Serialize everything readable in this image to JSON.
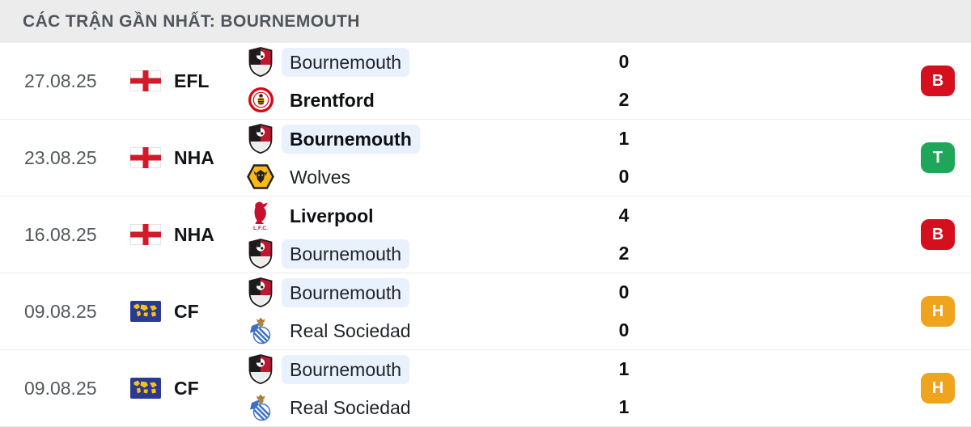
{
  "header": {
    "title": "CÁC TRẬN GẦN NHẤT: BOURNEMOUTH"
  },
  "result_colors": {
    "B": "#D50F1E",
    "T": "#1FA65A",
    "H": "#F0A41E"
  },
  "rows": [
    {
      "date": "27.08.25",
      "competition": {
        "label": "EFL",
        "icon": "england-flag"
      },
      "teams": [
        {
          "name": "Bournemouth",
          "logo": "bournemouth-logo",
          "highlight": true,
          "winner": false,
          "score": "0"
        },
        {
          "name": "Brentford",
          "logo": "brentford-logo",
          "highlight": false,
          "winner": true,
          "score": "2"
        }
      ],
      "result": {
        "label": "B"
      }
    },
    {
      "date": "23.08.25",
      "competition": {
        "label": "NHA",
        "icon": "england-flag"
      },
      "teams": [
        {
          "name": "Bournemouth",
          "logo": "bournemouth-logo",
          "highlight": true,
          "winner": true,
          "score": "1"
        },
        {
          "name": "Wolves",
          "logo": "wolves-logo",
          "highlight": false,
          "winner": false,
          "score": "0"
        }
      ],
      "result": {
        "label": "T"
      }
    },
    {
      "date": "16.08.25",
      "competition": {
        "label": "NHA",
        "icon": "england-flag"
      },
      "teams": [
        {
          "name": "Liverpool",
          "logo": "liverpool-logo",
          "highlight": false,
          "winner": true,
          "score": "4"
        },
        {
          "name": "Bournemouth",
          "logo": "bournemouth-logo",
          "highlight": true,
          "winner": false,
          "score": "2"
        }
      ],
      "result": {
        "label": "B"
      }
    },
    {
      "date": "09.08.25",
      "competition": {
        "label": "CF",
        "icon": "world-flag"
      },
      "teams": [
        {
          "name": "Bournemouth",
          "logo": "bournemouth-logo",
          "highlight": true,
          "winner": false,
          "score": "0"
        },
        {
          "name": "Real Sociedad",
          "logo": "real-sociedad-logo",
          "highlight": false,
          "winner": false,
          "score": "0"
        }
      ],
      "result": {
        "label": "H"
      }
    },
    {
      "date": "09.08.25",
      "competition": {
        "label": "CF",
        "icon": "world-flag"
      },
      "teams": [
        {
          "name": "Bournemouth",
          "logo": "bournemouth-logo",
          "highlight": true,
          "winner": false,
          "score": "1"
        },
        {
          "name": "Real Sociedad",
          "logo": "real-sociedad-logo",
          "highlight": false,
          "winner": false,
          "score": "1"
        }
      ],
      "result": {
        "label": "H"
      }
    }
  ]
}
